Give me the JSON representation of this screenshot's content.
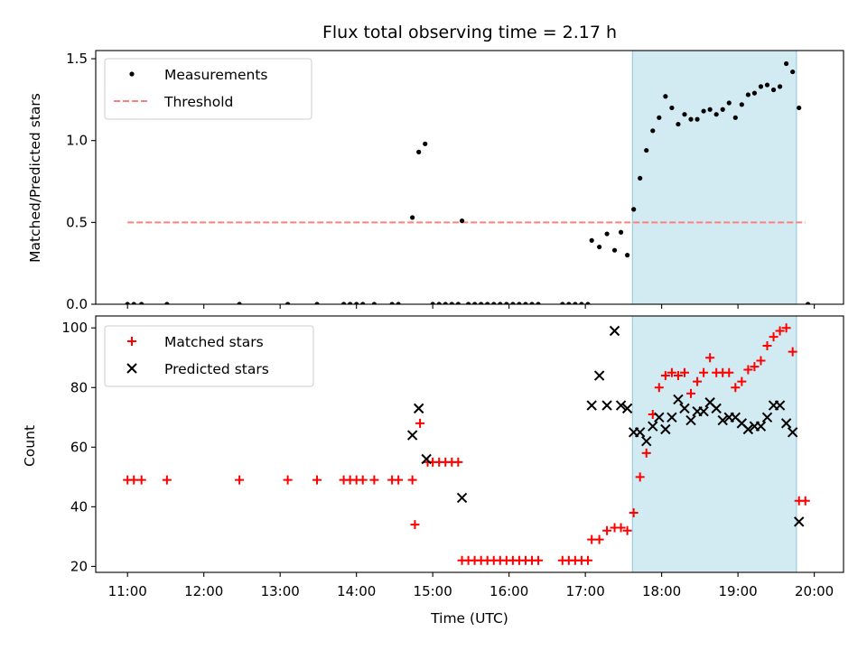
{
  "chart_data": [
    {
      "type": "scatter",
      "title": "Flux total observing time = 2.17 h",
      "xlabel": "",
      "ylabel": "Matched/Predicted stars",
      "xlim": [
        "10:35",
        "20:23"
      ],
      "ylim": [
        0,
        1.55
      ],
      "x_ticks": [
        "11:00",
        "12:00",
        "13:00",
        "14:00",
        "15:00",
        "16:00",
        "17:00",
        "18:00",
        "19:00",
        "20:00"
      ],
      "y_ticks": [
        0.0,
        0.5,
        1.0,
        1.5
      ],
      "y_tick_labels": [
        "0.0",
        "0.5",
        "1.0",
        "1.5"
      ],
      "legend_position": "upper-left",
      "highlight_span": {
        "start": "17:37",
        "end": "19:46",
        "color": "#add8e6"
      },
      "threshold": {
        "name": "Threshold",
        "value": 0.5,
        "x_start": "11:00",
        "x_end": "19:53",
        "color": "#ff7f7f",
        "style": "dashed"
      },
      "series": [
        {
          "name": "Measurements",
          "marker": "dot",
          "color": "#000000",
          "points": [
            [
              "11:00",
              0
            ],
            [
              "11:05",
              0
            ],
            [
              "11:11",
              0
            ],
            [
              "11:31",
              0
            ],
            [
              "12:28",
              0
            ],
            [
              "13:06",
              0
            ],
            [
              "13:29",
              0
            ],
            [
              "13:50",
              0
            ],
            [
              "13:55",
              0
            ],
            [
              "14:00",
              0
            ],
            [
              "14:05",
              0
            ],
            [
              "14:14",
              0
            ],
            [
              "14:28",
              0
            ],
            [
              "14:33",
              0
            ],
            [
              "14:44",
              0.53
            ],
            [
              "14:49",
              0.93
            ],
            [
              "14:54",
              0.98
            ],
            [
              "15:00",
              0
            ],
            [
              "15:05",
              0
            ],
            [
              "15:10",
              0
            ],
            [
              "15:15",
              0
            ],
            [
              "15:20",
              0
            ],
            [
              "15:23",
              0.51
            ],
            [
              "15:28",
              0
            ],
            [
              "15:33",
              0
            ],
            [
              "15:38",
              0
            ],
            [
              "15:43",
              0
            ],
            [
              "15:48",
              0
            ],
            [
              "15:53",
              0
            ],
            [
              "15:58",
              0
            ],
            [
              "16:03",
              0
            ],
            [
              "16:08",
              0
            ],
            [
              "16:13",
              0
            ],
            [
              "16:18",
              0
            ],
            [
              "16:23",
              0
            ],
            [
              "16:42",
              0
            ],
            [
              "16:47",
              0
            ],
            [
              "16:52",
              0
            ],
            [
              "16:57",
              0
            ],
            [
              "17:02",
              0
            ],
            [
              "17:05",
              0.39
            ],
            [
              "17:11",
              0.35
            ],
            [
              "17:17",
              0.43
            ],
            [
              "17:23",
              0.33
            ],
            [
              "17:28",
              0.44
            ],
            [
              "17:33",
              0.3
            ],
            [
              "17:38",
              0.58
            ],
            [
              "17:43",
              0.77
            ],
            [
              "17:48",
              0.94
            ],
            [
              "17:53",
              1.06
            ],
            [
              "17:58",
              1.14
            ],
            [
              "18:03",
              1.27
            ],
            [
              "18:08",
              1.2
            ],
            [
              "18:13",
              1.1
            ],
            [
              "18:18",
              1.16
            ],
            [
              "18:23",
              1.13
            ],
            [
              "18:28",
              1.13
            ],
            [
              "18:33",
              1.18
            ],
            [
              "18:38",
              1.19
            ],
            [
              "18:43",
              1.16
            ],
            [
              "18:48",
              1.19
            ],
            [
              "18:53",
              1.23
            ],
            [
              "18:58",
              1.14
            ],
            [
              "19:03",
              1.22
            ],
            [
              "19:08",
              1.28
            ],
            [
              "19:13",
              1.29
            ],
            [
              "19:18",
              1.33
            ],
            [
              "19:23",
              1.34
            ],
            [
              "19:28",
              1.31
            ],
            [
              "19:33",
              1.33
            ],
            [
              "19:38",
              1.47
            ],
            [
              "19:43",
              1.42
            ],
            [
              "19:48",
              1.2
            ],
            [
              "19:55",
              0
            ]
          ]
        }
      ]
    },
    {
      "type": "scatter",
      "title": "",
      "xlabel": "Time (UTC)",
      "ylabel": "Count",
      "xlim": [
        "10:35",
        "20:23"
      ],
      "ylim": [
        18,
        104
      ],
      "x_ticks": [
        "11:00",
        "12:00",
        "13:00",
        "14:00",
        "15:00",
        "16:00",
        "17:00",
        "18:00",
        "19:00",
        "20:00"
      ],
      "y_ticks": [
        20,
        40,
        60,
        80,
        100
      ],
      "legend_position": "upper-left",
      "highlight_span": {
        "start": "17:37",
        "end": "19:46",
        "color": "#add8e6"
      },
      "series": [
        {
          "name": "Matched stars",
          "marker": "plus",
          "color": "#ff0000",
          "points": [
            [
              "11:00",
              49
            ],
            [
              "11:05",
              49
            ],
            [
              "11:11",
              49
            ],
            [
              "11:31",
              49
            ],
            [
              "12:28",
              49
            ],
            [
              "13:06",
              49
            ],
            [
              "13:29",
              49
            ],
            [
              "13:50",
              49
            ],
            [
              "13:55",
              49
            ],
            [
              "14:00",
              49
            ],
            [
              "14:05",
              49
            ],
            [
              "14:14",
              49
            ],
            [
              "14:28",
              49
            ],
            [
              "14:33",
              49
            ],
            [
              "14:44",
              49
            ],
            [
              "14:46",
              34
            ],
            [
              "14:50",
              68
            ],
            [
              "14:56",
              55
            ],
            [
              "15:00",
              55
            ],
            [
              "15:05",
              55
            ],
            [
              "15:10",
              55
            ],
            [
              "15:15",
              55
            ],
            [
              "15:20",
              55
            ],
            [
              "15:23",
              22
            ],
            [
              "15:28",
              22
            ],
            [
              "15:33",
              22
            ],
            [
              "15:38",
              22
            ],
            [
              "15:43",
              22
            ],
            [
              "15:48",
              22
            ],
            [
              "15:53",
              22
            ],
            [
              "15:58",
              22
            ],
            [
              "16:03",
              22
            ],
            [
              "16:08",
              22
            ],
            [
              "16:13",
              22
            ],
            [
              "16:18",
              22
            ],
            [
              "16:23",
              22
            ],
            [
              "16:42",
              22
            ],
            [
              "16:47",
              22
            ],
            [
              "16:52",
              22
            ],
            [
              "16:57",
              22
            ],
            [
              "17:02",
              22
            ],
            [
              "17:05",
              29
            ],
            [
              "17:11",
              29
            ],
            [
              "17:17",
              32
            ],
            [
              "17:23",
              33
            ],
            [
              "17:28",
              33
            ],
            [
              "17:33",
              32
            ],
            [
              "17:38",
              38
            ],
            [
              "17:43",
              50
            ],
            [
              "17:48",
              58
            ],
            [
              "17:53",
              71
            ],
            [
              "17:58",
              80
            ],
            [
              "18:03",
              84
            ],
            [
              "18:08",
              85
            ],
            [
              "18:13",
              84
            ],
            [
              "18:18",
              85
            ],
            [
              "18:23",
              78
            ],
            [
              "18:28",
              82
            ],
            [
              "18:33",
              85
            ],
            [
              "18:38",
              90
            ],
            [
              "18:43",
              85
            ],
            [
              "18:48",
              85
            ],
            [
              "18:53",
              85
            ],
            [
              "18:58",
              80
            ],
            [
              "19:03",
              82
            ],
            [
              "19:08",
              86
            ],
            [
              "19:13",
              87
            ],
            [
              "19:18",
              89
            ],
            [
              "19:23",
              94
            ],
            [
              "19:28",
              97
            ],
            [
              "19:33",
              99
            ],
            [
              "19:38",
              100
            ],
            [
              "19:43",
              92
            ],
            [
              "19:48",
              42
            ],
            [
              "19:53",
              42
            ]
          ]
        },
        {
          "name": "Predicted stars",
          "marker": "x",
          "color": "#000000",
          "points": [
            [
              "14:44",
              64
            ],
            [
              "14:49",
              73
            ],
            [
              "14:55",
              56
            ],
            [
              "15:23",
              43
            ],
            [
              "17:05",
              74
            ],
            [
              "17:11",
              84
            ],
            [
              "17:17",
              74
            ],
            [
              "17:23",
              99
            ],
            [
              "17:28",
              74
            ],
            [
              "17:33",
              73
            ],
            [
              "17:38",
              65
            ],
            [
              "17:43",
              65
            ],
            [
              "17:48",
              62
            ],
            [
              "17:53",
              67
            ],
            [
              "17:58",
              70
            ],
            [
              "18:03",
              66
            ],
            [
              "18:08",
              70
            ],
            [
              "18:13",
              76
            ],
            [
              "18:18",
              73
            ],
            [
              "18:23",
              69
            ],
            [
              "18:28",
              72
            ],
            [
              "18:33",
              72
            ],
            [
              "18:38",
              75
            ],
            [
              "18:43",
              73
            ],
            [
              "18:48",
              69
            ],
            [
              "18:53",
              70
            ],
            [
              "18:58",
              70
            ],
            [
              "19:03",
              68
            ],
            [
              "19:08",
              66
            ],
            [
              "19:13",
              67
            ],
            [
              "19:18",
              67
            ],
            [
              "19:23",
              70
            ],
            [
              "19:28",
              74
            ],
            [
              "19:33",
              74
            ],
            [
              "19:38",
              68
            ],
            [
              "19:43",
              65
            ],
            [
              "19:48",
              35
            ]
          ]
        }
      ]
    }
  ]
}
